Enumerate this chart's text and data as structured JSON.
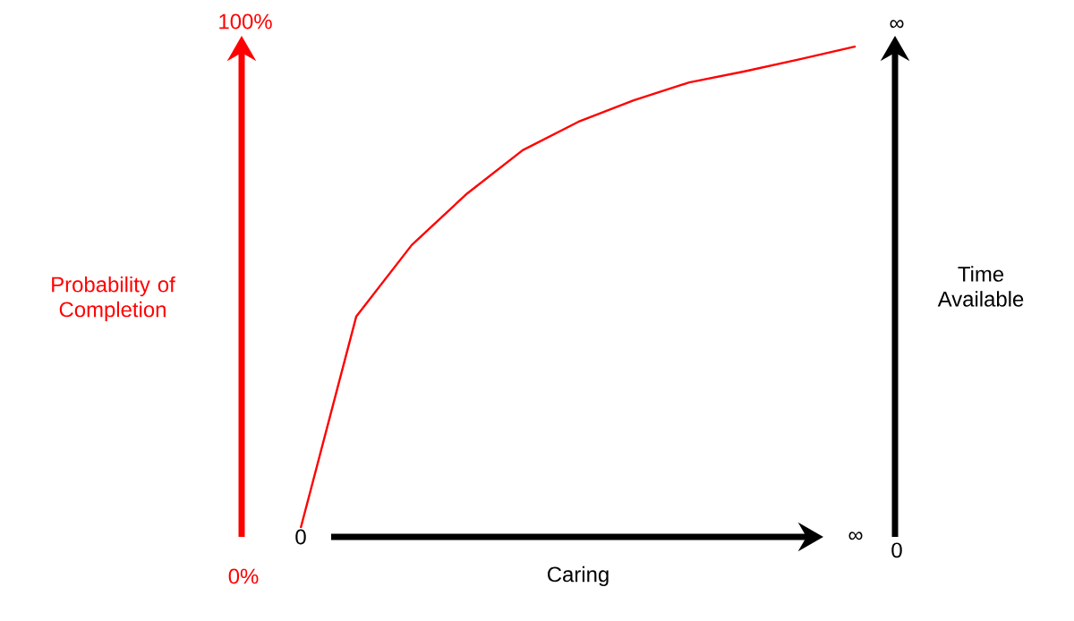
{
  "chart_data": {
    "type": "line",
    "xlabel": "Caring",
    "ylabel": "Probability of Completion",
    "y2label": "Time Available",
    "categories": [
      "0",
      null,
      null,
      null,
      null,
      null,
      null,
      null,
      null,
      null,
      "∞"
    ],
    "ylim": [
      0,
      100
    ],
    "yticks": [
      {
        "value": 0,
        "label": "0%"
      },
      {
        "value": 100,
        "label": "100%"
      }
    ],
    "annotations": [
      "∞",
      "0"
    ],
    "marker": "none",
    "line_style": "solid",
    "series": [
      {
        "color": "#ff0000",
        "values": [
          8.7,
          46.8,
          59.7,
          69,
          76.8,
          81.9,
          85.8,
          89,
          91,
          93.2,
          95.5
        ]
      }
    ]
  }
}
